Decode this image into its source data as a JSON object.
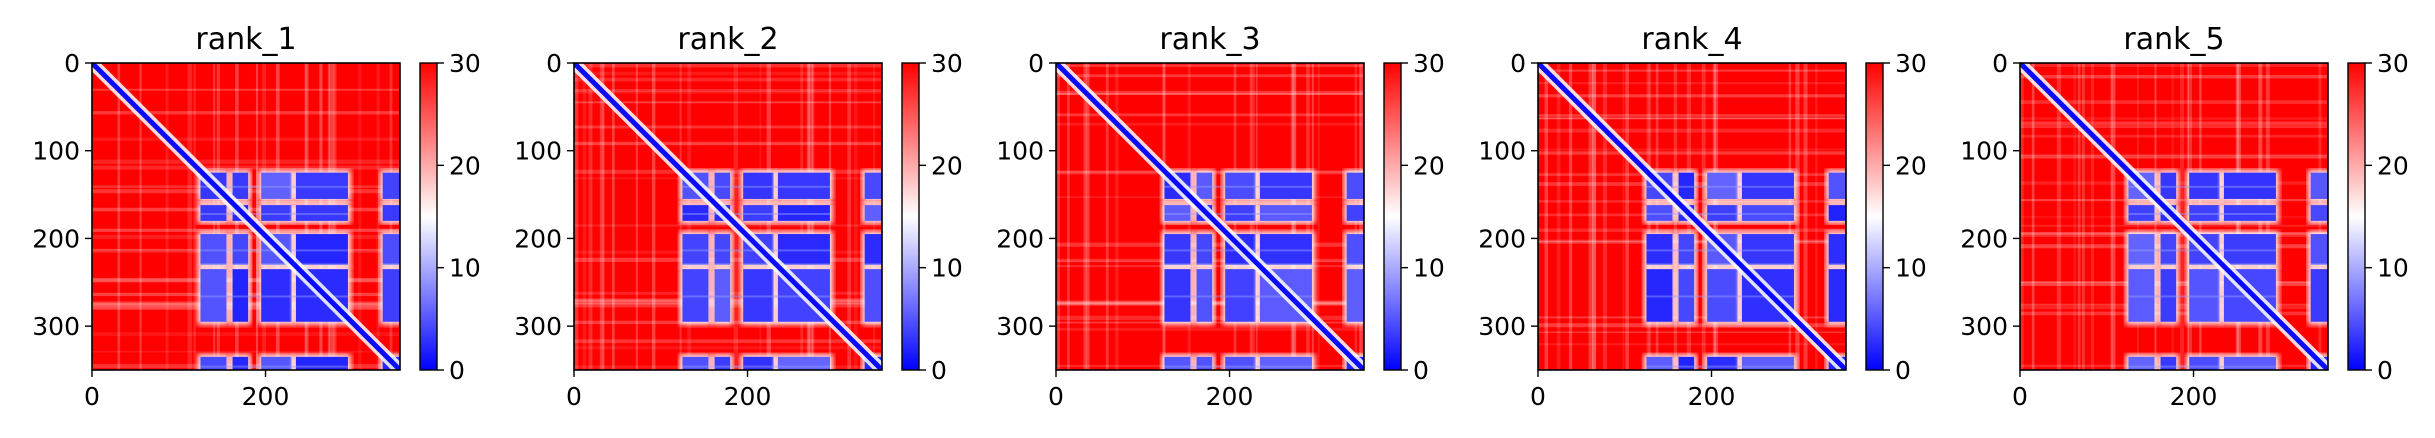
{
  "chart_data": [
    {
      "type": "heatmap",
      "title": "rank_1",
      "variant": 1,
      "xlim": [
        0,
        355
      ],
      "ylim": [
        350,
        0
      ],
      "x_ticks": [
        {
          "value": 0,
          "label": "0"
        },
        {
          "value": 200,
          "label": "200"
        }
      ],
      "y_ticks": [
        {
          "value": 0,
          "label": "0"
        },
        {
          "value": 100,
          "label": "100"
        },
        {
          "value": 200,
          "label": "200"
        },
        {
          "value": 300,
          "label": "300"
        }
      ],
      "colorbar": {
        "min": 0,
        "max": 30,
        "colormap": "bwr",
        "ticks": [
          {
            "value": 0,
            "label": "0"
          },
          {
            "value": 10,
            "label": "10"
          },
          {
            "value": 20,
            "label": "20"
          },
          {
            "value": 30,
            "label": "30"
          }
        ]
      },
      "low_blocks": [
        [
          125,
          155
        ],
        [
          162,
          180
        ],
        [
          195,
          230
        ],
        [
          235,
          295
        ],
        [
          335,
          355
        ]
      ],
      "diagonal": true
    },
    {
      "type": "heatmap",
      "title": "rank_2",
      "variant": 2,
      "xlim": [
        0,
        355
      ],
      "ylim": [
        350,
        0
      ],
      "x_ticks": [
        {
          "value": 0,
          "label": "0"
        },
        {
          "value": 200,
          "label": "200"
        }
      ],
      "y_ticks": [
        {
          "value": 0,
          "label": "0"
        },
        {
          "value": 100,
          "label": "100"
        },
        {
          "value": 200,
          "label": "200"
        },
        {
          "value": 300,
          "label": "300"
        }
      ],
      "colorbar": {
        "min": 0,
        "max": 30,
        "colormap": "bwr",
        "ticks": [
          {
            "value": 0,
            "label": "0"
          },
          {
            "value": 10,
            "label": "10"
          },
          {
            "value": 20,
            "label": "20"
          },
          {
            "value": 30,
            "label": "30"
          }
        ]
      },
      "low_blocks": [
        [
          125,
          155
        ],
        [
          162,
          180
        ],
        [
          195,
          230
        ],
        [
          235,
          295
        ],
        [
          335,
          355
        ]
      ],
      "diagonal": true
    },
    {
      "type": "heatmap",
      "title": "rank_3",
      "variant": 3,
      "xlim": [
        0,
        355
      ],
      "ylim": [
        350,
        0
      ],
      "x_ticks": [
        {
          "value": 0,
          "label": "0"
        },
        {
          "value": 200,
          "label": "200"
        }
      ],
      "y_ticks": [
        {
          "value": 0,
          "label": "0"
        },
        {
          "value": 100,
          "label": "100"
        },
        {
          "value": 200,
          "label": "200"
        },
        {
          "value": 300,
          "label": "300"
        }
      ],
      "colorbar": {
        "min": 0,
        "max": 30,
        "colormap": "bwr",
        "ticks": [
          {
            "value": 0,
            "label": "0"
          },
          {
            "value": 10,
            "label": "10"
          },
          {
            "value": 20,
            "label": "20"
          },
          {
            "value": 30,
            "label": "30"
          }
        ]
      },
      "low_blocks": [
        [
          125,
          155
        ],
        [
          162,
          180
        ],
        [
          195,
          230
        ],
        [
          235,
          295
        ],
        [
          335,
          355
        ]
      ],
      "diagonal": true
    },
    {
      "type": "heatmap",
      "title": "rank_4",
      "variant": 4,
      "xlim": [
        0,
        355
      ],
      "ylim": [
        350,
        0
      ],
      "x_ticks": [
        {
          "value": 0,
          "label": "0"
        },
        {
          "value": 200,
          "label": "200"
        }
      ],
      "y_ticks": [
        {
          "value": 0,
          "label": "0"
        },
        {
          "value": 100,
          "label": "100"
        },
        {
          "value": 200,
          "label": "200"
        },
        {
          "value": 300,
          "label": "300"
        }
      ],
      "colorbar": {
        "min": 0,
        "max": 30,
        "colormap": "bwr",
        "ticks": [
          {
            "value": 0,
            "label": "0"
          },
          {
            "value": 10,
            "label": "10"
          },
          {
            "value": 20,
            "label": "20"
          },
          {
            "value": 30,
            "label": "30"
          }
        ]
      },
      "low_blocks": [
        [
          125,
          155
        ],
        [
          162,
          180
        ],
        [
          195,
          230
        ],
        [
          235,
          295
        ],
        [
          335,
          355
        ]
      ],
      "diagonal": true
    },
    {
      "type": "heatmap",
      "title": "rank_5",
      "variant": 5,
      "xlim": [
        0,
        355
      ],
      "ylim": [
        350,
        0
      ],
      "x_ticks": [
        {
          "value": 0,
          "label": "0"
        },
        {
          "value": 200,
          "label": "200"
        }
      ],
      "y_ticks": [
        {
          "value": 0,
          "label": "0"
        },
        {
          "value": 100,
          "label": "100"
        },
        {
          "value": 200,
          "label": "200"
        },
        {
          "value": 300,
          "label": "300"
        }
      ],
      "colorbar": {
        "min": 0,
        "max": 30,
        "colormap": "bwr",
        "ticks": [
          {
            "value": 0,
            "label": "0"
          },
          {
            "value": 10,
            "label": "10"
          },
          {
            "value": 20,
            "label": "20"
          },
          {
            "value": 30,
            "label": "30"
          }
        ]
      },
      "low_blocks": [
        [
          125,
          155
        ],
        [
          162,
          180
        ],
        [
          195,
          230
        ],
        [
          235,
          295
        ],
        [
          335,
          355
        ]
      ],
      "diagonal": true
    }
  ]
}
